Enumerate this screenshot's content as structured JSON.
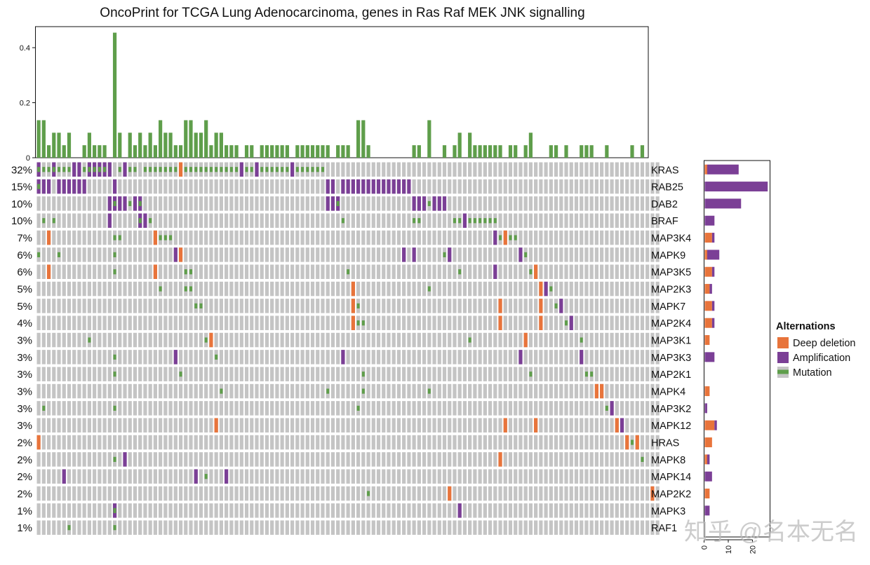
{
  "chart_data": {
    "type": "heatmap",
    "title": "OncoPrint for TCGA Lung Adenocarcinoma, genes in Ras Raf MEK JNK signalling",
    "matrix_legend": {
      "m": "Mutation",
      "a": "Amplification",
      "d": "Deep deletion",
      "A": "Amplification + Mutation",
      ".": "No alteration"
    },
    "genes": [
      {
        "name": "KRAS",
        "pct": "32%",
        "row": "AmmAmmmaamAAAAa.mamm.mmmmmmmdmmmmmmmmmmmammammmmmmammmmmm.................................................................."
      },
      {
        "name": "RAB25",
        "pct": "15%",
        "row": "Aaa.aaaaaa.....a.........................................aa.aaaaaaaaaaaaaa..............................................."
      },
      {
        "name": "DAB2",
        "pct": "10%",
        "row": "..............aAaamaA....................................aaA..............aaamaaa........................................"
      },
      {
        "name": "BRAF",
        "pct": "10%",
        "row": ".m.m..........a.....Aam.....................................m.............mm......mmammmmmm..............................."
      },
      {
        "name": "MAP3K4",
        "pct": "7%",
        "row": "..d............mm......dmmm...............................................................amdmm.........................."
      },
      {
        "name": "MAPK9",
        "pct": "6%",
        "row": "m...m..........m...........ad...........................................a.a.....ma.............am........................."
      },
      {
        "name": "MAP3K5",
        "pct": "6%",
        "row": "..d............m.......d.....mm..............................m.....................m......a......md......................"
      },
      {
        "name": "MAP2K3",
        "pct": "5%",
        "row": "........................m....mm...............................d..............m.....................dam..................."
      },
      {
        "name": "MAPK7",
        "pct": "5%",
        "row": "...............................mm.............................dm...........................d.......d..ma................."
      },
      {
        "name": "MAP2K4",
        "pct": "4%",
        "row": "..............................................................dmm..........................d.......d....ma..............."
      },
      {
        "name": "MAP3K1",
        "pct": "3%",
        "row": "..........m......................md..................................................m..........d..........m.............."
      },
      {
        "name": "MAP3K3",
        "pct": "3%",
        "row": "...............m...........a.......m........................a..................................a...........a............."
      },
      {
        "name": "MAP2K1",
        "pct": "3%",
        "row": "...............m............m...................................m................................m..........mm..........."
      },
      {
        "name": "MAPK4",
        "pct": "3%",
        "row": "....................................m....................m......m............m................................dd........."
      },
      {
        "name": "MAP3K2",
        "pct": "3%",
        "row": ".m.............m...............................................m................................................ma......."
      },
      {
        "name": "MAPK12",
        "pct": "3%",
        "row": "...................................d........................................................d.....d...............da....."
      },
      {
        "name": "HRAS",
        "pct": "2%",
        "row": "d...................................................................................................................dmd.."
      },
      {
        "name": "MAPK8",
        "pct": "2%",
        "row": "...............m.a.........................................................................d...........................m."
      },
      {
        "name": "MAPK14",
        "pct": "2%",
        "row": ".....a.........................a.m...a..................................................................................."
      },
      {
        "name": "MAP2K2",
        "pct": "2%",
        "row": ".................................................................m...............d.......................................d"
      },
      {
        "name": "MAPK3",
        "pct": "1%",
        "row": "...............A...................................................................a....................................."
      },
      {
        "name": "RAF1",
        "pct": "1%",
        "row": "......m........m........................................................................................................."
      }
    ],
    "top_bar": {
      "description_of_value": "",
      "ylim": [
        0,
        0.45
      ],
      "ticks": [
        "0",
        "0.2",
        "0.4"
      ],
      "tick_values": [
        0,
        0.2,
        0.4
      ],
      "series_color": "#5f9e4b"
    },
    "side_bar": {
      "ticks": [
        "0",
        "10",
        "20"
      ],
      "tick_values": [
        0,
        10,
        20
      ],
      "xlim": [
        0,
        26
      ]
    },
    "legend": {
      "title": "Alternations",
      "position": "right",
      "items": [
        {
          "label": "Deep deletion",
          "color": "#e8743b"
        },
        {
          "label": "Amplification",
          "color": "#7b3f96"
        },
        {
          "label": "Mutation",
          "color": "#5f9e4b"
        }
      ]
    },
    "colors": {
      "background_cell": "#c4c4c4",
      "mutation": "#5f9e4b",
      "amplification": "#7b3f96",
      "deep_deletion": "#e8743b"
    }
  },
  "watermark": "知乎 @名本无名"
}
